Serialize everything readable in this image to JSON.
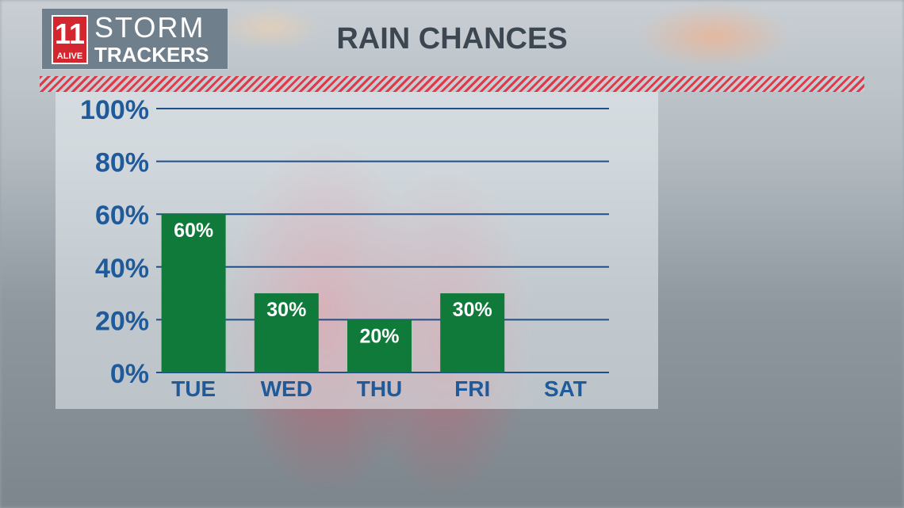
{
  "branding": {
    "logo_number": "11",
    "logo_alive": "ALIVE",
    "logo_line1": "STORM",
    "logo_line2": "TRACKERS"
  },
  "colors": {
    "bar": "#0f7a3a",
    "axis_text": "#1f5a9a",
    "gridline": "#1f4f86",
    "stripe": "#e03a4a"
  },
  "chart_data": {
    "type": "bar",
    "title": "RAIN CHANCES",
    "categories": [
      "TUE",
      "WED",
      "THU",
      "FRI",
      "SAT"
    ],
    "values": [
      60,
      30,
      20,
      30,
      null
    ],
    "data_labels": [
      "60%",
      "30%",
      "20%",
      "30%",
      ""
    ],
    "y_ticks": [
      0,
      20,
      40,
      60,
      80,
      100
    ],
    "y_tick_labels": [
      "0%",
      "20%",
      "40%",
      "60%",
      "80%",
      "100%"
    ],
    "ylim": [
      0,
      100
    ],
    "grid": true
  }
}
